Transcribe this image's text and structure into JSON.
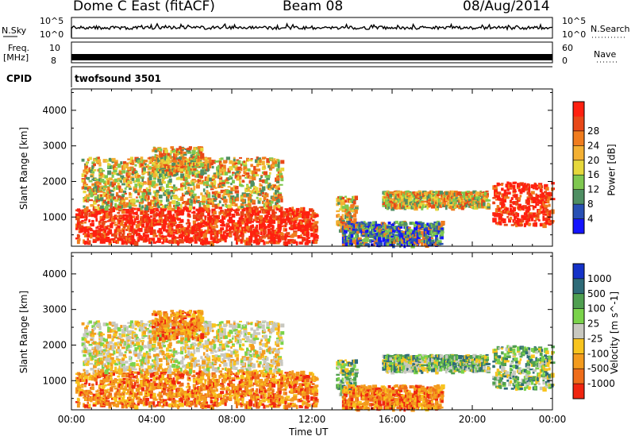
{
  "header": {
    "station": "Dome C East (fitACF)",
    "beam": "Beam 08",
    "date": "08/Aug/2014"
  },
  "panels": {
    "nsky": {
      "label": "N.Sky",
      "top_tick": "10^5",
      "bottom_tick": "10^0"
    },
    "nsearch": {
      "label": "N.Search",
      "top_tick": "10^5",
      "bottom_tick": "10^0"
    },
    "freq": {
      "label": "Freq.",
      "unit": "[MHz]",
      "top_tick": "10",
      "bottom_tick": "8"
    },
    "nave": {
      "label": "Nave",
      "top_tick": "60",
      "bottom_tick": "0"
    },
    "cpid": {
      "label": "CPID",
      "value": "twofsound 3501"
    }
  },
  "chart_data": [
    {
      "type": "heatmap",
      "quantity": "power",
      "xlabel": "Time UT",
      "ylabel": "Slant Range [km]",
      "xlim": [
        0,
        24
      ],
      "ylim": [
        180,
        4600
      ],
      "y_ticks": [
        "1000",
        "2000",
        "3000",
        "4000"
      ],
      "colorbar": {
        "label": "Power [dB]",
        "ticks": [
          "4",
          "8",
          "12",
          "16",
          "20",
          "24",
          "28"
        ],
        "colors": [
          "#1414ff",
          "#2850b4",
          "#4f8f63",
          "#7fc850",
          "#e6d83c",
          "#f3b033",
          "#f07c1e",
          "#e84818",
          "#ff2010"
        ]
      },
      "echo_regions": [
        {
          "t": [
            0.2,
            12.2
          ],
          "range": [
            300,
            1300
          ],
          "level": "strong"
        },
        {
          "t": [
            0.5,
            10.5
          ],
          "range": [
            1300,
            2700
          ],
          "level": "moderate"
        },
        {
          "t": [
            4.0,
            6.5
          ],
          "range": [
            2200,
            3000
          ],
          "level": "moderate"
        },
        {
          "t": [
            13.2,
            14.2
          ],
          "range": [
            600,
            1600
          ],
          "level": "moderate"
        },
        {
          "t": [
            13.5,
            18.5
          ],
          "range": [
            250,
            900
          ],
          "level": "weak"
        },
        {
          "t": [
            15.5,
            20.8
          ],
          "range": [
            1300,
            1750
          ],
          "level": "moderate"
        },
        {
          "t": [
            21.0,
            24.0
          ],
          "range": [
            800,
            2000
          ],
          "level": "strong"
        }
      ]
    },
    {
      "type": "heatmap",
      "quantity": "velocity",
      "xlabel": "Time UT",
      "ylabel": "Slant Range [km]",
      "xlim": [
        0,
        24
      ],
      "ylim": [
        180,
        4600
      ],
      "y_ticks": [
        "1000",
        "2000",
        "3000",
        "4000"
      ],
      "colorbar": {
        "label": "Velocity [m s^-1]",
        "ticks": [
          "1000",
          "500",
          "100",
          "25",
          "-25",
          "-100",
          "-500",
          "-1000"
        ],
        "colors": [
          "#1432c8",
          "#2e6b78",
          "#4f9f50",
          "#7ad34a",
          "#c8c8c0",
          "#f8c41e",
          "#f39b1e",
          "#ef6d1a",
          "#f02510"
        ]
      },
      "echo_regions": [
        {
          "t": [
            0.2,
            12.2
          ],
          "range": [
            300,
            1300
          ],
          "level": "orange"
        },
        {
          "t": [
            0.5,
            10.5
          ],
          "range": [
            1300,
            2700
          ],
          "level": "grey"
        },
        {
          "t": [
            4.0,
            6.5
          ],
          "range": [
            2200,
            3000
          ],
          "level": "orange"
        },
        {
          "t": [
            13.2,
            14.2
          ],
          "range": [
            600,
            1600
          ],
          "level": "green"
        },
        {
          "t": [
            13.5,
            18.5
          ],
          "range": [
            250,
            900
          ],
          "level": "orange"
        },
        {
          "t": [
            15.5,
            20.8
          ],
          "range": [
            1300,
            1750
          ],
          "level": "green"
        },
        {
          "t": [
            21.0,
            24.0
          ],
          "range": [
            800,
            2000
          ],
          "level": "green"
        }
      ]
    }
  ],
  "time_axis": {
    "ticks": [
      "00:00",
      "04:00",
      "08:00",
      "12:00",
      "16:00",
      "20:00",
      "00:00"
    ],
    "label": "Time UT"
  }
}
